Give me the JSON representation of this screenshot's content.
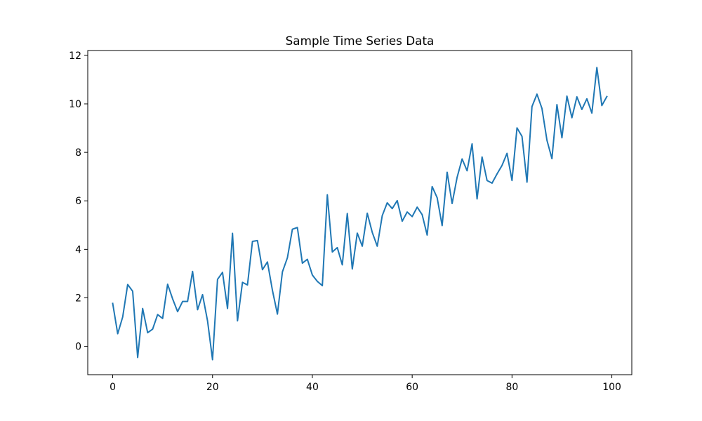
{
  "colors": {
    "line": "#1f77b4",
    "axis": "#000000",
    "background": "#ffffff"
  },
  "chart_data": {
    "type": "line",
    "title": "Sample Time Series Data",
    "xlabel": "",
    "ylabel": "",
    "grid": false,
    "xlim": [
      -5,
      104
    ],
    "ylim": [
      -1.17,
      12.2
    ],
    "x_ticks": [
      0,
      20,
      40,
      60,
      80,
      100
    ],
    "y_ticks": [
      0,
      2,
      4,
      6,
      8,
      10,
      12
    ],
    "x_tick_labels": [
      "0",
      "20",
      "40",
      "60",
      "80",
      "100"
    ],
    "y_tick_labels": [
      "0",
      "2",
      "4",
      "6",
      "8",
      "10",
      "12"
    ],
    "series": [
      {
        "x": [
          0,
          1,
          2,
          3,
          4,
          5,
          6,
          7,
          8,
          9,
          10,
          11,
          12,
          13,
          14,
          15,
          16,
          17,
          18,
          19,
          20,
          21,
          22,
          23,
          24,
          25,
          26,
          27,
          28,
          29,
          30,
          31,
          32,
          33,
          34,
          35,
          36,
          37,
          38,
          39,
          40,
          41,
          42,
          43,
          44,
          45,
          46,
          47,
          48,
          49,
          50,
          51,
          52,
          53,
          54,
          55,
          56,
          57,
          58,
          59,
          60,
          61,
          62,
          63,
          64,
          65,
          66,
          67,
          68,
          69,
          70,
          71,
          72,
          73,
          74,
          75,
          76,
          77,
          78,
          79,
          80,
          81,
          82,
          83,
          84,
          85,
          86,
          87,
          88,
          89,
          90,
          91,
          92,
          93,
          94,
          95,
          96,
          97,
          98,
          99
        ],
        "values": [
          1.77,
          0.52,
          1.21,
          2.55,
          2.27,
          -0.46,
          1.56,
          0.56,
          0.71,
          1.31,
          1.15,
          2.56,
          1.96,
          1.43,
          1.85,
          1.85,
          3.09,
          1.51,
          2.13,
          1.05,
          -0.55,
          2.76,
          3.05,
          1.56,
          4.66,
          1.05,
          2.64,
          2.53,
          4.33,
          4.36,
          3.16,
          3.48,
          2.31,
          1.33,
          3.07,
          3.65,
          4.83,
          4.9,
          3.43,
          3.59,
          2.94,
          2.68,
          2.5,
          6.25,
          3.89,
          4.07,
          3.36,
          5.48,
          3.19,
          4.67,
          4.13,
          5.49,
          4.7,
          4.13,
          5.39,
          5.92,
          5.68,
          6.01,
          5.16,
          5.54,
          5.35,
          5.74,
          5.43,
          4.59,
          6.59,
          6.13,
          4.98,
          7.18,
          5.89,
          6.97,
          7.73,
          7.24,
          8.35,
          6.08,
          7.81,
          6.84,
          6.73,
          7.11,
          7.46,
          7.96,
          6.84,
          9.01,
          8.66,
          6.77,
          9.89,
          10.4,
          9.81,
          8.5,
          7.74,
          9.97,
          8.6,
          10.32,
          9.43,
          10.29,
          9.77,
          10.21,
          9.62,
          11.5,
          9.93,
          10.3
        ]
      }
    ]
  }
}
